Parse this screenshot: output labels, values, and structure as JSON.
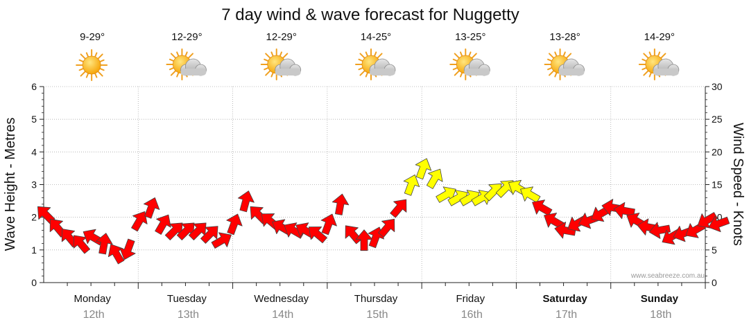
{
  "chart_data": {
    "type": "line",
    "title": "7 day wind & wave forecast for Nuggetty",
    "ylabel_left": "Wave Height - Metres",
    "ylabel_right": "Wind Speed - Knots",
    "ylim_left": [
      0,
      6
    ],
    "ylim_right": [
      0,
      30
    ],
    "yticks_left": [
      "0",
      "1",
      "2",
      "3",
      "4",
      "5",
      "6"
    ],
    "yticks_right": [
      "0",
      "5",
      "10",
      "15",
      "20",
      "25",
      "30"
    ],
    "grid": true,
    "watermark": "www.seabreeze.com.au",
    "days": [
      {
        "day": "Monday",
        "date": "12th",
        "temp": "9-29°",
        "weather": "sunny-icon",
        "weekend": false
      },
      {
        "day": "Tuesday",
        "date": "13th",
        "temp": "12-29°",
        "weather": "partly-cloudy-icon",
        "weekend": false
      },
      {
        "day": "Wednesday",
        "date": "14th",
        "temp": "12-29°",
        "weather": "partly-cloudy-icon",
        "weekend": false
      },
      {
        "day": "Thursday",
        "date": "15th",
        "temp": "14-25°",
        "weather": "partly-cloudy-icon",
        "weekend": false
      },
      {
        "day": "Friday",
        "date": "16th",
        "temp": "13-25°",
        "weather": "partly-cloudy-icon",
        "weekend": false
      },
      {
        "day": "Saturday",
        "date": "17th",
        "temp": "13-28°",
        "weather": "partly-cloudy-icon",
        "weekend": true
      },
      {
        "day": "Sunday",
        "date": "18th",
        "temp": "14-29°",
        "weather": "partly-cloudy-icon",
        "weekend": true
      }
    ],
    "series": [
      {
        "name": "Wind Speed",
        "units": "knots",
        "step_hours": 3,
        "start_day": 0,
        "start_hour": 0,
        "colors": {
          "calm": "#ff0000",
          "fresh": "#ffff00"
        },
        "fresh_threshold_knots": 13,
        "values": [
          10.5,
          8.5,
          7.0,
          6.0,
          7.0,
          6.0,
          4.5,
          5.0,
          9.5,
          11.5,
          9.0,
          8.0,
          8.0,
          8.0,
          7.5,
          6.5,
          9.0,
          12.5,
          10.5,
          9.5,
          8.5,
          8.0,
          8.0,
          7.5,
          9.0,
          12.0,
          7.5,
          6.5,
          7.0,
          8.5,
          11.5,
          15.0,
          17.5,
          16.0,
          13.5,
          13.0,
          13.0,
          13.0,
          14.0,
          14.5,
          14.5,
          13.5,
          11.5,
          9.5,
          8.0,
          9.0,
          9.5,
          10.5,
          11.5,
          11.0,
          9.5,
          8.5,
          8.0,
          7.0,
          7.5,
          8.0,
          9.5,
          9.0
        ],
        "direction_deg": [
          315,
          320,
          320,
          320,
          300,
          10,
          330,
          200,
          30,
          20,
          30,
          45,
          45,
          45,
          45,
          60,
          20,
          15,
          315,
          310,
          300,
          300,
          300,
          310,
          20,
          10,
          320,
          0,
          20,
          40,
          40,
          20,
          20,
          30,
          60,
          60,
          60,
          60,
          45,
          45,
          300,
          300,
          300,
          300,
          280,
          240,
          250,
          240,
          280,
          280,
          300,
          280,
          260,
          240,
          250,
          240,
          240,
          250
        ]
      }
    ]
  }
}
